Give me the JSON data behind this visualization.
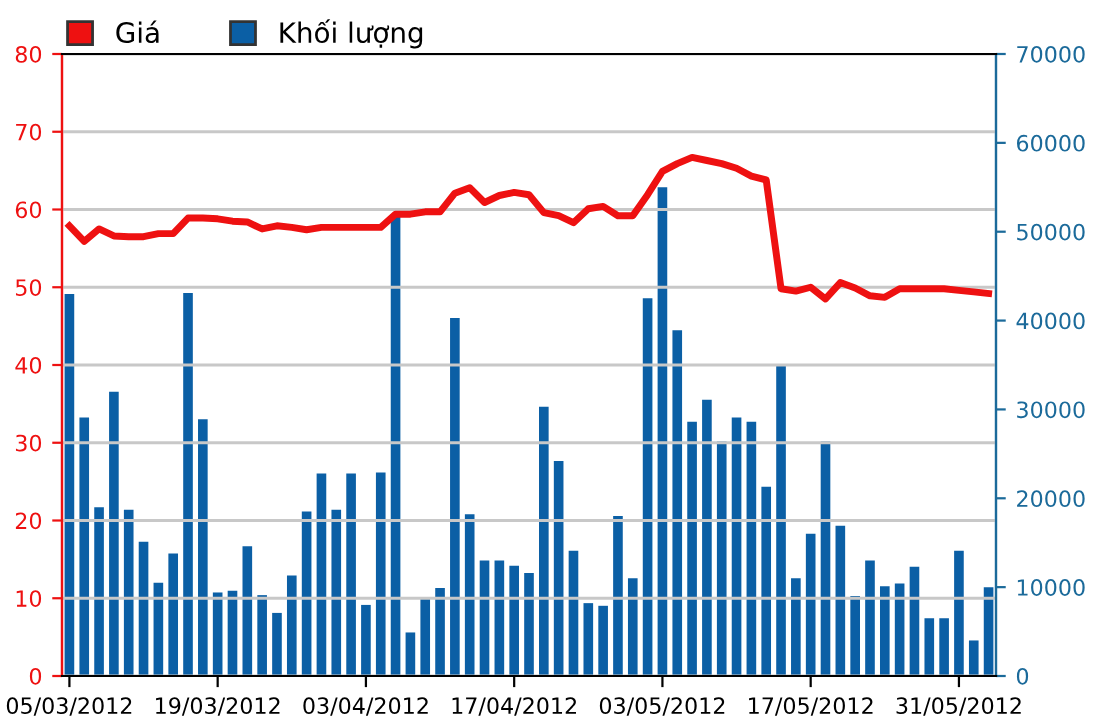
{
  "chart_data": {
    "type": "bar",
    "categories": [
      "05/03/2012",
      null,
      null,
      null,
      null,
      null,
      null,
      null,
      null,
      null,
      "19/03/2012",
      null,
      null,
      null,
      null,
      null,
      null,
      null,
      null,
      null,
      "03/04/2012",
      null,
      null,
      null,
      null,
      null,
      null,
      null,
      null,
      null,
      "17/04/2012",
      null,
      null,
      null,
      null,
      null,
      null,
      null,
      null,
      null,
      "03/05/2012",
      null,
      null,
      null,
      null,
      null,
      null,
      null,
      null,
      null,
      "17/05/2012",
      null,
      null,
      null,
      null,
      null,
      null,
      null,
      null,
      null,
      "31/05/2012",
      null,
      null
    ],
    "series": [
      {
        "name": "Giá",
        "type": "line",
        "axis": "y",
        "color": "#ee1111",
        "values": [
          57.9,
          55.9,
          57.5,
          56.6,
          56.5,
          56.5,
          56.9,
          56.9,
          58.9,
          58.9,
          58.8,
          58.5,
          58.4,
          57.5,
          57.9,
          57.7,
          57.4,
          57.7,
          57.7,
          57.7,
          57.7,
          57.7,
          59.4,
          59.4,
          59.7,
          59.7,
          62.1,
          62.8,
          60.9,
          61.8,
          62.2,
          61.9,
          59.6,
          59.2,
          58.3,
          60.1,
          60.4,
          59.2,
          59.2,
          61.9,
          64.9,
          65.9,
          66.7,
          66.3,
          65.9,
          65.3,
          64.3,
          63.8,
          49.8,
          49.5,
          50.0,
          48.5,
          50.6,
          49.9,
          48.9,
          48.7,
          49.8,
          49.8,
          49.8,
          49.8,
          49.6,
          49.4,
          49.2
        ]
      },
      {
        "name": "Khối lượng",
        "axis": "y2",
        "color": "#0b5fa5",
        "values": [
          43000,
          29100,
          19000,
          32000,
          18700,
          15100,
          10500,
          13800,
          43100,
          28900,
          9400,
          9600,
          14600,
          9100,
          7100,
          11300,
          18500,
          22800,
          18700,
          22800,
          8000,
          22900,
          52000,
          4900,
          8800,
          9900,
          40300,
          18200,
          13000,
          13000,
          12400,
          11600,
          30300,
          24200,
          14100,
          8200,
          7900,
          18000,
          11000,
          42500,
          55000,
          38900,
          28600,
          31100,
          26400,
          29100,
          28600,
          21300,
          35000,
          11000,
          16000,
          26400,
          16900,
          9000,
          13000,
          10100,
          10400,
          12300,
          6500,
          6500,
          14100,
          4000,
          10000
        ]
      }
    ],
    "ylim": [
      0,
      80
    ],
    "yticks": [
      0,
      10,
      20,
      30,
      40,
      50,
      60,
      70,
      80
    ],
    "y2lim": [
      0,
      70000
    ],
    "y2ticks": [
      0,
      10000,
      20000,
      30000,
      40000,
      50000,
      60000,
      70000
    ],
    "grid": "y",
    "legend": "top left",
    "marker": "none",
    "line_style": "solid"
  }
}
